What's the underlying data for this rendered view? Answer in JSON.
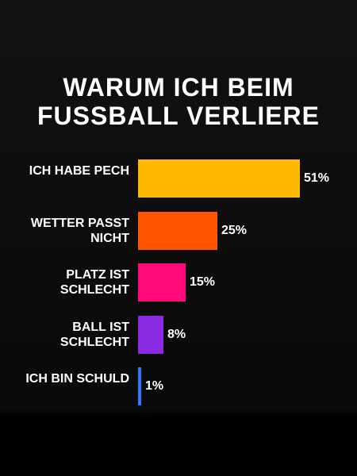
{
  "chart_data": {
    "type": "bar",
    "orientation": "horizontal",
    "title": "WARUM ICH BEIM FUSSBALL VERLIERE",
    "categories": [
      "ICH HABE PECH",
      "WETTER PASST NICHT",
      "PLATZ IST SCHLECHT",
      "BALL IST SCHLECHT",
      "ICH BIN SCHULD"
    ],
    "values": [
      51,
      25,
      15,
      8,
      1
    ],
    "value_labels": [
      "51%",
      "25%",
      "15%",
      "8%",
      "1%"
    ],
    "colors": [
      "#ffb900",
      "#ff5500",
      "#ff0a78",
      "#8a2be2",
      "#2f7bf5"
    ]
  }
}
